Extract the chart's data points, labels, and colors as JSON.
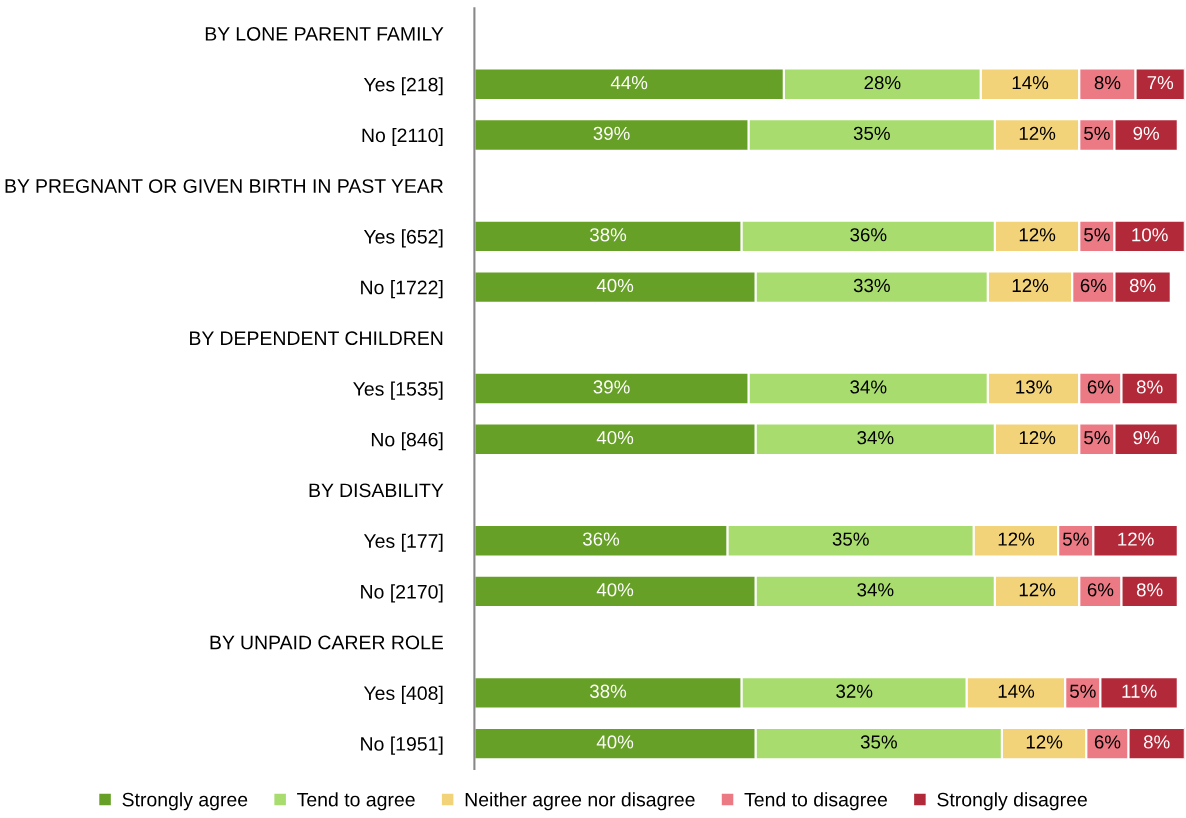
{
  "chart_data": {
    "type": "bar",
    "orientation": "horizontal",
    "stacked": true,
    "legend": "bottom",
    "tick_labels": "y",
    "categories": [
      "BY LONE PARENT FAMILY",
      "Yes [218]",
      "No [2110]",
      "BY PREGNANT OR GIVEN BIRTH IN PAST YEAR",
      "Yes [652]",
      "No [1722]",
      "BY DEPENDENT CHILDREN",
      "Yes [1535]",
      "No [846]",
      "BY DISABILITY",
      "Yes [177]",
      "No [2170]",
      "BY UNPAID CARER ROLE",
      "Yes [408]",
      "No [1951]"
    ],
    "series": [
      {
        "name": "Strongly agree",
        "color": "#67a026",
        "values": [
          null,
          44,
          39,
          null,
          38,
          40,
          null,
          39,
          40,
          null,
          36,
          40,
          null,
          38,
          40
        ],
        "value_labels": [
          null,
          "44%",
          "39%",
          null,
          "38%",
          "40%",
          null,
          "39%",
          "40%",
          null,
          "36%",
          "40%",
          null,
          "38%",
          "40%"
        ]
      },
      {
        "name": "Tend to agree",
        "color": "#a9dc6e",
        "values": [
          null,
          28,
          35,
          null,
          36,
          33,
          null,
          34,
          34,
          null,
          35,
          34,
          null,
          32,
          35
        ],
        "value_labels": [
          null,
          "28%",
          "35%",
          null,
          "36%",
          "33%",
          null,
          "34%",
          "34%",
          null,
          "35%",
          "34%",
          null,
          "32%",
          "35%"
        ]
      },
      {
        "name": "Neither agree nor disagree",
        "color": "#f3d37a",
        "values": [
          null,
          14,
          12,
          null,
          12,
          12,
          null,
          13,
          12,
          null,
          12,
          12,
          null,
          14,
          12
        ],
        "value_labels": [
          null,
          "14%",
          "12%",
          null,
          "12%",
          "12%",
          null,
          "13%",
          "12%",
          null,
          "12%",
          "12%",
          null,
          "14%",
          "12%"
        ]
      },
      {
        "name": "Tend to disagree",
        "color": "#ec7a84",
        "values": [
          null,
          8,
          5,
          null,
          5,
          6,
          null,
          6,
          5,
          null,
          5,
          6,
          null,
          5,
          6
        ],
        "value_labels": [
          null,
          "8%",
          "5%",
          null,
          "5%",
          "6%",
          null,
          "6%",
          "5%",
          null,
          "5%",
          "6%",
          null,
          "5%",
          "6%"
        ]
      },
      {
        "name": "Strongly disagree",
        "color": "#b22a3a",
        "values": [
          null,
          7,
          9,
          null,
          10,
          8,
          null,
          8,
          9,
          null,
          12,
          8,
          null,
          11,
          8
        ],
        "value_labels": [
          null,
          "7%",
          "9%",
          null,
          "10%",
          "8%",
          null,
          "8%",
          "9%",
          null,
          "12%",
          "8%",
          null,
          "11%",
          "8%"
        ]
      }
    ]
  }
}
